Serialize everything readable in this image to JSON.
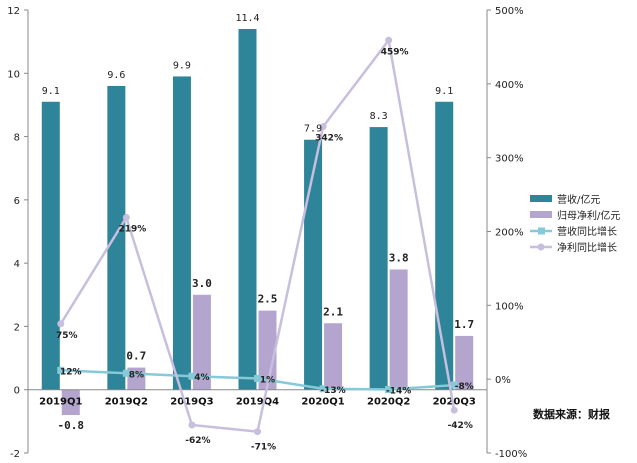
{
  "chart_data": {
    "type": "bar",
    "categories": [
      "2019Q1",
      "2019Q2",
      "2019Q3",
      "2019Q4",
      "2020Q1",
      "2020Q2",
      "2020Q3"
    ],
    "series": [
      {
        "name": "营收/亿元",
        "kind": "bar",
        "axis": "left",
        "color": "#2e8499",
        "values": [
          9.1,
          9.6,
          9.9,
          11.4,
          7.9,
          8.3,
          9.1
        ],
        "labels": [
          "9.1",
          "9.6",
          "9.9",
          "11.4",
          "7.9",
          "8.3",
          "9.1"
        ]
      },
      {
        "name": "归母净利/亿元",
        "kind": "bar",
        "axis": "left",
        "color": "#b4a5cf",
        "values": [
          -0.8,
          0.7,
          3.0,
          2.5,
          2.1,
          3.8,
          1.7
        ],
        "labels": [
          "-0.8",
          "0.7",
          "3.0",
          "2.5",
          "2.1",
          "3.8",
          "1.7"
        ]
      },
      {
        "name": "营收同比增长",
        "kind": "line",
        "axis": "right",
        "color": "#86c9d9",
        "values": [
          12,
          8,
          4,
          1,
          -13,
          -14,
          -8
        ],
        "labels": [
          "12%",
          "8%",
          "4%",
          "1%",
          "-13%",
          "-14%",
          "-8%"
        ]
      },
      {
        "name": "净利同比增长",
        "kind": "line",
        "axis": "right",
        "color": "#c8bedd",
        "values": [
          75,
          219,
          -62,
          -71,
          342,
          459,
          -42
        ],
        "labels": [
          "75%",
          "219%",
          "-62%",
          "-71%",
          "342%",
          "459%",
          "-42%"
        ]
      }
    ],
    "left_axis": {
      "min": -2,
      "max": 12,
      "ticks": [
        "-2",
        "0",
        "2",
        "4",
        "6",
        "8",
        "10",
        "12"
      ]
    },
    "right_axis": {
      "min": -100,
      "max": 500,
      "ticks": [
        "-100%",
        "0%",
        "100%",
        "200%",
        "300%",
        "400%",
        "500%"
      ]
    },
    "legend_position": "right",
    "source_note": "数据来源：财报"
  }
}
